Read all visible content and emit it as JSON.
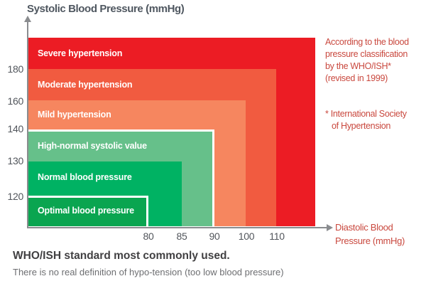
{
  "title": "Systolic Blood Pressure (mmHg)",
  "axes": {
    "y": {
      "ticks": [
        "180",
        "160",
        "140",
        "130",
        "120"
      ]
    },
    "x": {
      "ticks": [
        "80",
        "85",
        "90",
        "100",
        "110"
      ],
      "label_lines": [
        "Diastolic Blood",
        "Pressure (mmHg)"
      ]
    }
  },
  "zones": [
    {
      "label": "Severe hypertension",
      "color": "#ec1c24"
    },
    {
      "label": "Moderate hypertension",
      "color": "#f15b40"
    },
    {
      "label": "Mild hypertension",
      "color": "#f6865f"
    },
    {
      "label": "High-normal systolic value",
      "color": "#66c08a"
    },
    {
      "label": "Normal blood pressure",
      "color": "#00b263"
    },
    {
      "label": "Optimal blood pressure",
      "color": "#0aa550"
    }
  ],
  "annotations": {
    "classification_lines": [
      "According to the blood",
      "pressure classification",
      "by the WHO/ISH*",
      "(revised in 1999)"
    ],
    "footnote_lines": [
      "* International Society",
      "of Hypertension"
    ]
  },
  "footer": {
    "heading": "WHO/ISH standard most commonly used.",
    "note": "There is no real definition of hypo-tension (too low blood pressure)"
  },
  "chart_data": {
    "type": "area",
    "description": "Nested step regions classifying blood pressure ranges; x = diastolic, y = systolic",
    "title": "Systolic Blood Pressure (mmHg) vs Diastolic Blood Pressure (mmHg)",
    "xlabel": "Diastolic Blood Pressure (mmHg)",
    "ylabel": "Systolic Blood Pressure (mmHg)",
    "x_ticks": [
      80,
      85,
      90,
      100,
      110
    ],
    "y_ticks": [
      120,
      130,
      140,
      160,
      180
    ],
    "grid": false,
    "zones": [
      {
        "label": "Optimal blood pressure",
        "systolic_max": 120,
        "diastolic_max": 80,
        "color": "#0aa550",
        "white_outline": true
      },
      {
        "label": "Normal blood pressure",
        "systolic_max": 130,
        "diastolic_max": 85,
        "color": "#00b263",
        "white_outline": false
      },
      {
        "label": "High-normal systolic value",
        "systolic_max": 140,
        "diastolic_max": 90,
        "color": "#66c08a",
        "white_outline": true
      },
      {
        "label": "Mild hypertension",
        "systolic_max": 160,
        "diastolic_max": 100,
        "color": "#f6865f",
        "white_outline": false
      },
      {
        "label": "Moderate hypertension",
        "systolic_max": 180,
        "diastolic_max": 110,
        "color": "#f15b40",
        "white_outline": false
      },
      {
        "label": "Severe hypertension",
        "systolic_above": 180,
        "diastolic_above": 110,
        "color": "#ec1c24",
        "white_outline": false
      }
    ]
  }
}
